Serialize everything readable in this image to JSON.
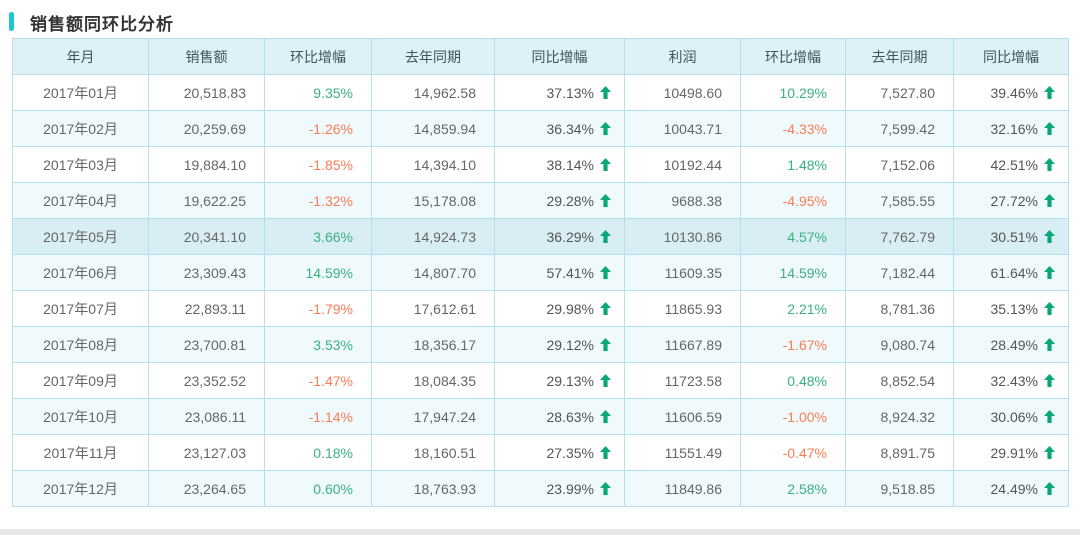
{
  "title": {
    "text": "销售额同环比分析"
  },
  "colors": {
    "accent_bar": "#1bc6d2",
    "positive_text": "#3bb180",
    "negative_text": "#fa7d55",
    "up_arrow": "#0aa678",
    "header_bg": "#ddf1f7",
    "row_alt_bg": "#f0fafc",
    "row_highlight_bg": "#d8edf4",
    "grid_border": "#b5dfeb"
  },
  "chart_data": {
    "type": "table",
    "title": "销售额同环比分析",
    "highlighted_month": "2017年05月",
    "columns": [
      {
        "key": "month",
        "label": "年月"
      },
      {
        "key": "sales",
        "label": "销售额"
      },
      {
        "key": "sales_mom",
        "label": "环比增幅"
      },
      {
        "key": "sales_ly",
        "label": "去年同期"
      },
      {
        "key": "sales_yoy",
        "label": "同比增幅"
      },
      {
        "key": "profit",
        "label": "利润"
      },
      {
        "key": "profit_mom",
        "label": "环比增幅"
      },
      {
        "key": "profit_ly",
        "label": "去年同期"
      },
      {
        "key": "profit_yoy",
        "label": "同比增幅"
      }
    ],
    "rows": [
      {
        "month": "2017年01月",
        "sales": "20,518.83",
        "sales_mom": "9.35%",
        "sales_ly": "14,962.58",
        "sales_yoy": "37.13%",
        "profit": "10498.60",
        "profit_mom": "10.29%",
        "profit_ly": "7,527.80",
        "profit_yoy": "39.46%"
      },
      {
        "month": "2017年02月",
        "sales": "20,259.69",
        "sales_mom": "-1.26%",
        "sales_ly": "14,859.94",
        "sales_yoy": "36.34%",
        "profit": "10043.71",
        "profit_mom": "-4.33%",
        "profit_ly": "7,599.42",
        "profit_yoy": "32.16%"
      },
      {
        "month": "2017年03月",
        "sales": "19,884.10",
        "sales_mom": "-1.85%",
        "sales_ly": "14,394.10",
        "sales_yoy": "38.14%",
        "profit": "10192.44",
        "profit_mom": "1.48%",
        "profit_ly": "7,152.06",
        "profit_yoy": "42.51%"
      },
      {
        "month": "2017年04月",
        "sales": "19,622.25",
        "sales_mom": "-1.32%",
        "sales_ly": "15,178.08",
        "sales_yoy": "29.28%",
        "profit": "9688.38",
        "profit_mom": "-4.95%",
        "profit_ly": "7,585.55",
        "profit_yoy": "27.72%"
      },
      {
        "month": "2017年05月",
        "sales": "20,341.10",
        "sales_mom": "3.66%",
        "sales_ly": "14,924.73",
        "sales_yoy": "36.29%",
        "profit": "10130.86",
        "profit_mom": "4.57%",
        "profit_ly": "7,762.79",
        "profit_yoy": "30.51%"
      },
      {
        "month": "2017年06月",
        "sales": "23,309.43",
        "sales_mom": "14.59%",
        "sales_ly": "14,807.70",
        "sales_yoy": "57.41%",
        "profit": "11609.35",
        "profit_mom": "14.59%",
        "profit_ly": "7,182.44",
        "profit_yoy": "61.64%"
      },
      {
        "month": "2017年07月",
        "sales": "22,893.11",
        "sales_mom": "-1.79%",
        "sales_ly": "17,612.61",
        "sales_yoy": "29.98%",
        "profit": "11865.93",
        "profit_mom": "2.21%",
        "profit_ly": "8,781.36",
        "profit_yoy": "35.13%"
      },
      {
        "month": "2017年08月",
        "sales": "23,700.81",
        "sales_mom": "3.53%",
        "sales_ly": "18,356.17",
        "sales_yoy": "29.12%",
        "profit": "11667.89",
        "profit_mom": "-1.67%",
        "profit_ly": "9,080.74",
        "profit_yoy": "28.49%"
      },
      {
        "month": "2017年09月",
        "sales": "23,352.52",
        "sales_mom": "-1.47%",
        "sales_ly": "18,084.35",
        "sales_yoy": "29.13%",
        "profit": "11723.58",
        "profit_mom": "0.48%",
        "profit_ly": "8,852.54",
        "profit_yoy": "32.43%"
      },
      {
        "month": "2017年10月",
        "sales": "23,086.11",
        "sales_mom": "-1.14%",
        "sales_ly": "17,947.24",
        "sales_yoy": "28.63%",
        "profit": "11606.59",
        "profit_mom": "-1.00%",
        "profit_ly": "8,924.32",
        "profit_yoy": "30.06%"
      },
      {
        "month": "2017年11月",
        "sales": "23,127.03",
        "sales_mom": "0.18%",
        "sales_ly": "18,160.51",
        "sales_yoy": "27.35%",
        "profit": "11551.49",
        "profit_mom": "-0.47%",
        "profit_ly": "8,891.75",
        "profit_yoy": "29.91%"
      },
      {
        "month": "2017年12月",
        "sales": "23,264.65",
        "sales_mom": "0.60%",
        "sales_ly": "18,763.93",
        "sales_yoy": "23.99%",
        "profit": "11849.86",
        "profit_mom": "2.58%",
        "profit_ly": "9,518.85",
        "profit_yoy": "24.49%"
      }
    ]
  }
}
